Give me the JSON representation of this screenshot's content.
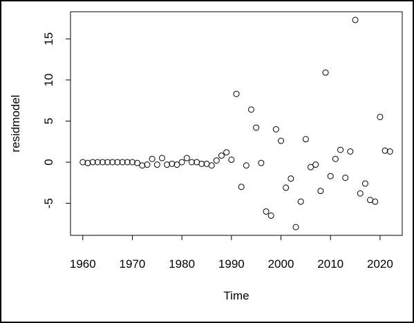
{
  "chart_data": {
    "type": "scatter",
    "x_label": "Time",
    "y_label": "residmodel",
    "x": [
      1960,
      1961,
      1962,
      1963,
      1964,
      1965,
      1966,
      1967,
      1968,
      1969,
      1970,
      1971,
      1972,
      1973,
      1974,
      1975,
      1976,
      1977,
      1978,
      1979,
      1980,
      1981,
      1982,
      1983,
      1984,
      1985,
      1986,
      1987,
      1988,
      1989,
      1990,
      1991,
      1992,
      1993,
      1994,
      1995,
      1996,
      1997,
      1998,
      1999,
      2000,
      2001,
      2002,
      2003,
      2004,
      2005,
      2006,
      2007,
      2008,
      2009,
      2010,
      2011,
      2012,
      2013,
      2014,
      2015,
      2016,
      2017,
      2018,
      2019,
      2020,
      2021,
      2022
    ],
    "values": [
      0,
      -0.1,
      0,
      0,
      0,
      0,
      0,
      0,
      0,
      0,
      0,
      -0.1,
      -0.4,
      -0.3,
      0.4,
      -0.3,
      0.5,
      -0.3,
      -0.2,
      -0.3,
      0,
      0.5,
      0,
      0,
      -0.2,
      -0.2,
      -0.4,
      0.2,
      0.8,
      1.2,
      0.3,
      8.3,
      -3.0,
      -0.4,
      6.4,
      4.2,
      -0.1,
      -6.0,
      -6.5,
      4.0,
      2.6,
      -3.1,
      -2.0,
      -7.9,
      -4.8,
      2.8,
      -0.6,
      -0.3,
      -3.5,
      10.9,
      -1.7,
      0.4,
      1.5,
      -1.9,
      1.3,
      17.3,
      -3.8,
      -2.6,
      -4.6,
      -4.8,
      5.5,
      1.4,
      1.3
    ],
    "color": "#000000",
    "xlim": [
      1957.52,
      2024.48
    ],
    "xticks": [
      1960,
      1970,
      1980,
      1990,
      2000,
      2010,
      2020
    ],
    "ylim": [
      -8.9,
      18.3
    ],
    "yticks": [
      -5,
      0,
      5,
      10,
      15
    ]
  }
}
